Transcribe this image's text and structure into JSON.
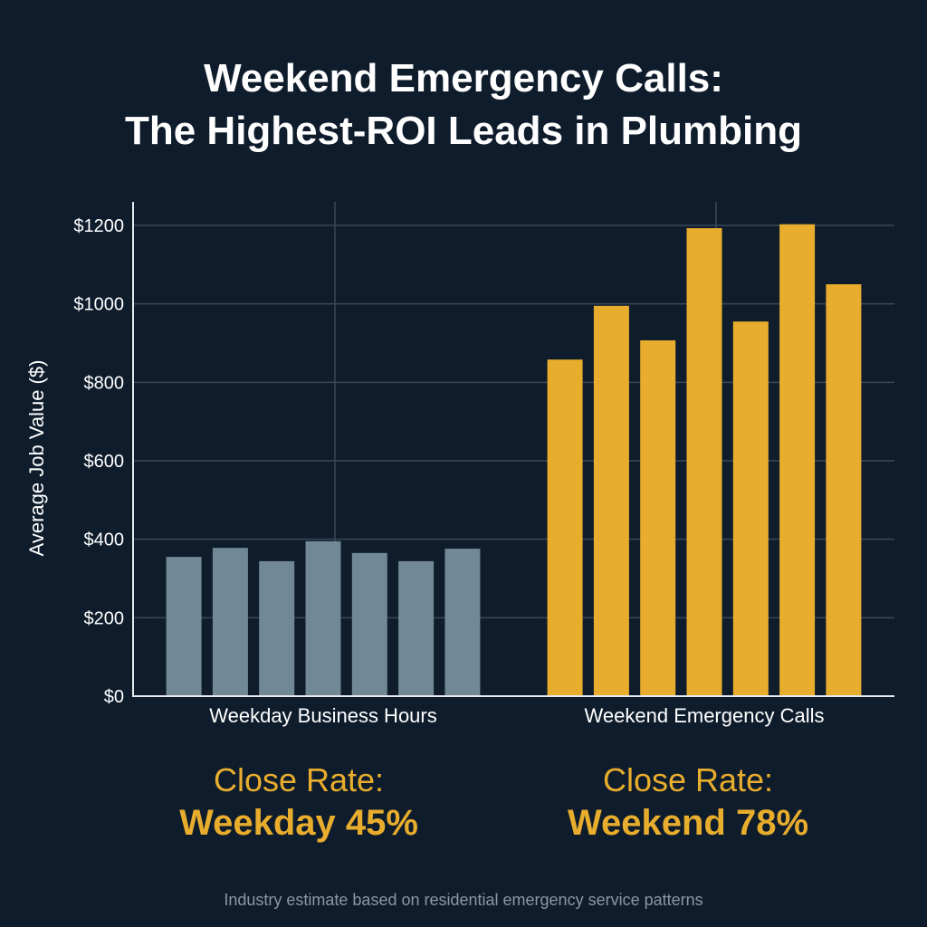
{
  "title_lines": [
    "Weekend Emergency Calls:",
    "The Highest-ROI Leads in Plumbing"
  ],
  "chart_data": {
    "type": "bar",
    "title": "Weekend Emergency Calls: The Highest-ROI Leads in Plumbing",
    "ylabel": "Average Job Value ($)",
    "xlabel": "",
    "ylim": [
      0,
      1260
    ],
    "yticks": [
      0,
      200,
      400,
      600,
      800,
      1000,
      1200
    ],
    "ytick_labels": [
      "$0",
      "$200",
      "$400",
      "$600",
      "$800",
      "$1000",
      "$1200"
    ],
    "grid": true,
    "groups": [
      {
        "label": "Weekday Business Hours",
        "color": "#718897",
        "values": [
          355,
          378,
          344,
          395,
          365,
          344,
          376
        ]
      },
      {
        "label": "Weekend Emergency Calls",
        "color": "#e8ad2c",
        "values": [
          858,
          995,
          907,
          1193,
          955,
          1203,
          1050
        ]
      }
    ]
  },
  "close_rates": [
    {
      "label": "Close Rate:",
      "value": "Weekday 45%"
    },
    {
      "label": "Close Rate:",
      "value": "Weekend 78%"
    }
  ],
  "footnote": "Industry estimate based on residential emergency service patterns",
  "colors": {
    "background": "#0f1c2c",
    "accent": "#e8ad2c",
    "weekday": "#718897"
  }
}
